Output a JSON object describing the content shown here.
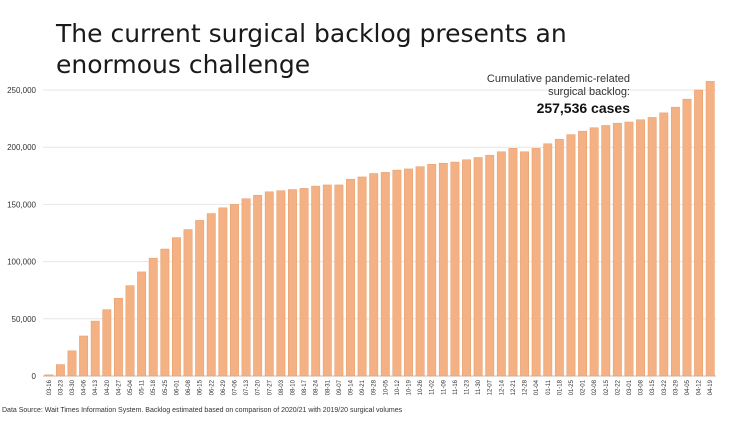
{
  "slide": {
    "title": "The current surgical backlog presents an enormous challenge",
    "callout_line1": "Cumulative pandemic-related",
    "callout_line2": "surgical backlog:",
    "callout_value": "257,536 cases",
    "source": "Data Source: Wait Times Information System. Backlog estimated based on comparison of 2020/21 with 2019/20 surgical volumes"
  },
  "colors": {
    "bar_fill": "#f4b183",
    "bar_stroke": "#e59c6a",
    "gridline": "#e6e6e6",
    "axis": "#bfbfbf"
  },
  "chart_data": {
    "type": "bar",
    "title": "",
    "xlabel": "",
    "ylabel": "",
    "ylim": [
      0,
      250000
    ],
    "yticks": [
      0,
      50000,
      100000,
      150000,
      200000,
      250000
    ],
    "ytick_labels": [
      "0",
      "50,000",
      "100,000",
      "150,000",
      "200,000",
      "250,000"
    ],
    "grid": true,
    "categories": [
      "03-16",
      "03-23",
      "03-30",
      "04-06",
      "04-13",
      "04-20",
      "04-27",
      "05-04",
      "05-11",
      "05-18",
      "05-25",
      "06-01",
      "06-08",
      "06-15",
      "06-22",
      "06-29",
      "07-06",
      "07-13",
      "07-20",
      "07-27",
      "08-03",
      "08-10",
      "08-17",
      "08-24",
      "08-31",
      "09-07",
      "09-14",
      "09-21",
      "09-28",
      "10-05",
      "10-12",
      "10-19",
      "10-26",
      "11-02",
      "11-09",
      "11-16",
      "11-23",
      "11-30",
      "12-07",
      "12-14",
      "12-21",
      "12-28",
      "01-04",
      "01-11",
      "01-18",
      "01-25",
      "02-01",
      "02-08",
      "02-15",
      "02-22",
      "03-01",
      "03-08",
      "03-15",
      "03-22",
      "03-29",
      "04-05",
      "04-12",
      "04-19"
    ],
    "values": [
      1000,
      10000,
      22000,
      35000,
      48000,
      58000,
      68000,
      79000,
      91000,
      103000,
      111000,
      121000,
      128000,
      136000,
      142000,
      147000,
      150000,
      155000,
      158000,
      161000,
      162000,
      163000,
      164000,
      166000,
      167000,
      167000,
      172000,
      174000,
      177000,
      178000,
      180000,
      181000,
      183000,
      185000,
      186000,
      187000,
      189000,
      191000,
      193000,
      196000,
      199000,
      196000,
      199000,
      203000,
      207000,
      211000,
      214000,
      217000,
      219000,
      221000,
      222000,
      224000,
      226000,
      230000,
      235000,
      242000,
      250000,
      257536
    ]
  }
}
